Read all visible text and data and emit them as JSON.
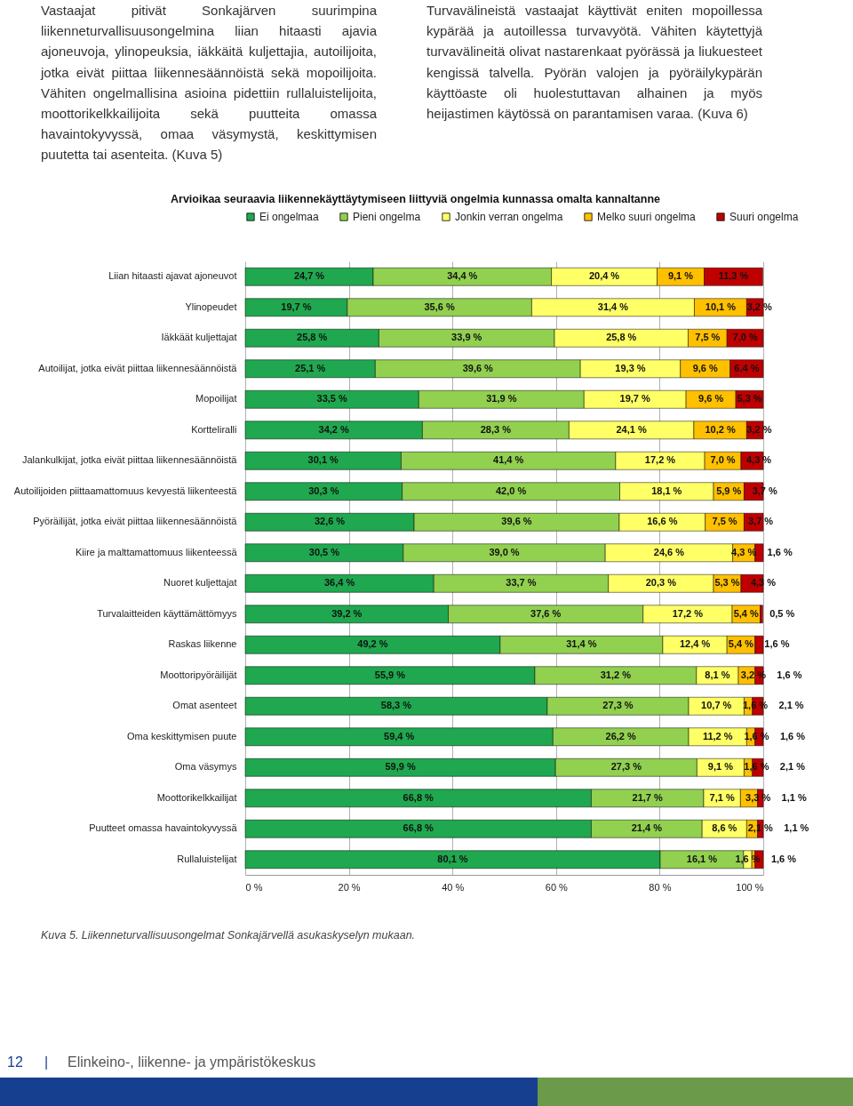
{
  "chart_data": {
    "type": "bar",
    "orientation": "horizontal",
    "stacked": true,
    "title": "Arvioikaa seuraavia liikennekäyttäytymiseen liittyviä ongelmia kunnassa omalta kannaltanne",
    "annotations": [
      "Vastaajat pitivät Sonkajärven suurimpina liikenneturvallisuusongelmina liian hitaasti ajavia ajoneuvoja, ylinopeuksia, iäkkäitä kuljettajia, autoilijoita, jotka eivät piittaa liikennesäännöistä sekä mopoilijoita. Vähiten ongelmallisina asioina pidettiin rullaluistelijoita, moottorikelkkailijoita sekä puutteita omassa havaintokyvyssä, omaa väsymystä, keskittymisen puutetta tai asenteita. (Kuva 5)",
      "Turvavälineistä vastaajat käyttivät eniten mopoillessa kypärää ja autoillessa turvavyötä. Vähiten käytettyjä turvavälineitä olivat nastarenkaat pyörässä ja liukuesteet kengissä talvella. Pyörän valojen ja pyöräilykypärän käyttöaste oli huolestuttavan alhainen ja myös heijastimen käytössä on parantamisen varaa. (Kuva 6)",
      "Kuva 5. Liikenneturvallisuusongelmat Sonkajärvellä asukaskyselyn mukaan.",
      "12",
      "|",
      "Elinkeino-, liikenne- ja ympäristökeskus"
    ],
    "categories": [
      "Liian hitaasti ajavat ajoneuvot",
      "Ylinopeudet",
      "Iäkkäät kuljettajat",
      "Autoilijat, jotka eivät piittaa liikennesäännöistä",
      "Mopoilijat",
      "Kortteliralli",
      "Jalankulkijat, jotka eivät piittaa liikennesäännöistä",
      "Autoilijoiden piittaamattomuus kevyestä liikenteestä",
      "Pyöräilijät, jotka eivät piittaa liikennesäännöistä",
      "Kiire ja malttamattomuus liikenteessä",
      "Nuoret kuljettajat",
      "Turvalaitteiden käyttämättömyys",
      "Raskas liikenne",
      "Moottoripyöräilijät",
      "Omat asenteet",
      "Oma keskittymisen puute",
      "Oma väsymys",
      "Moottorikelkkailijat",
      "Puutteet omassa havaintokyvyssä",
      "Rullaluistelijat"
    ],
    "series": [
      {
        "name": "Ei ongelmaa",
        "color": "#1fa84f",
        "values": [
          24.7,
          19.7,
          25.8,
          25.1,
          33.5,
          34.2,
          30.1,
          30.3,
          32.6,
          30.5,
          36.4,
          39.2,
          49.2,
          55.9,
          58.3,
          59.4,
          59.9,
          66.8,
          66.8,
          80.1
        ],
        "value_labels": [
          "24,7 %",
          "19,7 %",
          "25,8 %",
          "25,1 %",
          "33,5 %",
          "34,2 %",
          "30,1 %",
          "30,3 %",
          "32,6 %",
          "30,5 %",
          "36,4 %",
          "39,2 %",
          "49,2 %",
          "55,9 %",
          "58,3 %",
          "59,4 %",
          "59,9 %",
          "66,8 %",
          "66,8 %",
          "80,1 %"
        ]
      },
      {
        "name": "Pieni ongelma",
        "color": "#92d050",
        "values": [
          34.4,
          35.6,
          33.9,
          39.6,
          31.9,
          28.3,
          41.4,
          42.0,
          39.6,
          39.0,
          33.7,
          37.6,
          31.4,
          31.2,
          27.3,
          26.2,
          27.3,
          21.7,
          21.4,
          16.1
        ],
        "value_labels": [
          "34,4 %",
          "35,6 %",
          "33,9 %",
          "39,6 %",
          "31,9 %",
          "28,3 %",
          "41,4 %",
          "42,0 %",
          "39,6 %",
          "39,0 %",
          "33,7 %",
          "37,6 %",
          "31,4 %",
          "31,2 %",
          "27,3 %",
          "26,2 %",
          "27,3 %",
          "21,7 %",
          "21,4 %",
          "16,1 %"
        ]
      },
      {
        "name": "Jonkin verran ongelma",
        "color": "#ffff66",
        "values": [
          20.4,
          31.4,
          25.8,
          19.3,
          19.7,
          24.1,
          17.2,
          18.1,
          16.6,
          24.6,
          20.3,
          17.2,
          12.4,
          8.1,
          10.7,
          11.2,
          9.1,
          7.1,
          8.6,
          1.6
        ],
        "value_labels": [
          "20,4 %",
          "31,4 %",
          "25,8 %",
          "19,3 %",
          "19,7 %",
          "24,1 %",
          "17,2 %",
          "18,1 %",
          "16,6 %",
          "24,6 %",
          "20,3 %",
          "17,2 %",
          "12,4 %",
          "8,1 %",
          "10,7 %",
          "11,2 %",
          "9,1 %",
          "7,1 %",
          "8,6 %",
          "1,6 %"
        ]
      },
      {
        "name": "Melko suuri ongelma",
        "color": "#ffc000",
        "values": [
          9.1,
          10.1,
          7.5,
          9.6,
          9.6,
          10.2,
          7.0,
          5.9,
          7.5,
          4.3,
          5.3,
          5.4,
          5.4,
          3.2,
          1.6,
          1.6,
          1.6,
          3.3,
          2.1,
          0.6
        ],
        "value_labels": [
          "9,1 %",
          "10,1 %",
          "7,5 %",
          "9,6 %",
          "9,6 %",
          "10,2 %",
          "7,0 %",
          "5,9 %",
          "7,5 %",
          "4,3 %",
          "5,3 %",
          "5,4 %",
          "5,4 %",
          "3,2 %",
          "1,6 %",
          "1,6 %",
          "1,6 %",
          "3,3 %",
          "2,1 %",
          null
        ]
      },
      {
        "name": "Suuri ongelma",
        "color": "#c00000",
        "values": [
          11.3,
          3.2,
          7.0,
          6.4,
          5.3,
          3.2,
          4.3,
          3.7,
          3.7,
          1.6,
          4.3,
          0.5,
          1.6,
          1.6,
          2.1,
          1.6,
          2.1,
          1.1,
          1.1,
          1.6
        ],
        "value_labels": [
          "11,3 %",
          "3,2 %",
          "7,0 %",
          "6,4 %",
          "5,3 %",
          "3,2 %",
          "4,3 %",
          "3,7 %",
          "3,7 %",
          "1,6 %",
          "4,3 %",
          "0,5 %",
          "1,6 %",
          "1,6 %",
          "2,1 %",
          "1,6 %",
          "2,1 %",
          "1,1 %",
          "1,1 %",
          "1,6 %"
        ]
      }
    ],
    "xlim": [
      0,
      100
    ],
    "xticks": [
      {
        "value": 0,
        "label": "0 %"
      },
      {
        "value": 20,
        "label": "20 %"
      },
      {
        "value": 40,
        "label": "40 %"
      },
      {
        "value": 60,
        "label": "60 %"
      },
      {
        "value": 80,
        "label": "80 %"
      },
      {
        "value": 100,
        "label": "100 %"
      }
    ],
    "grid": "x",
    "legend": "top"
  }
}
